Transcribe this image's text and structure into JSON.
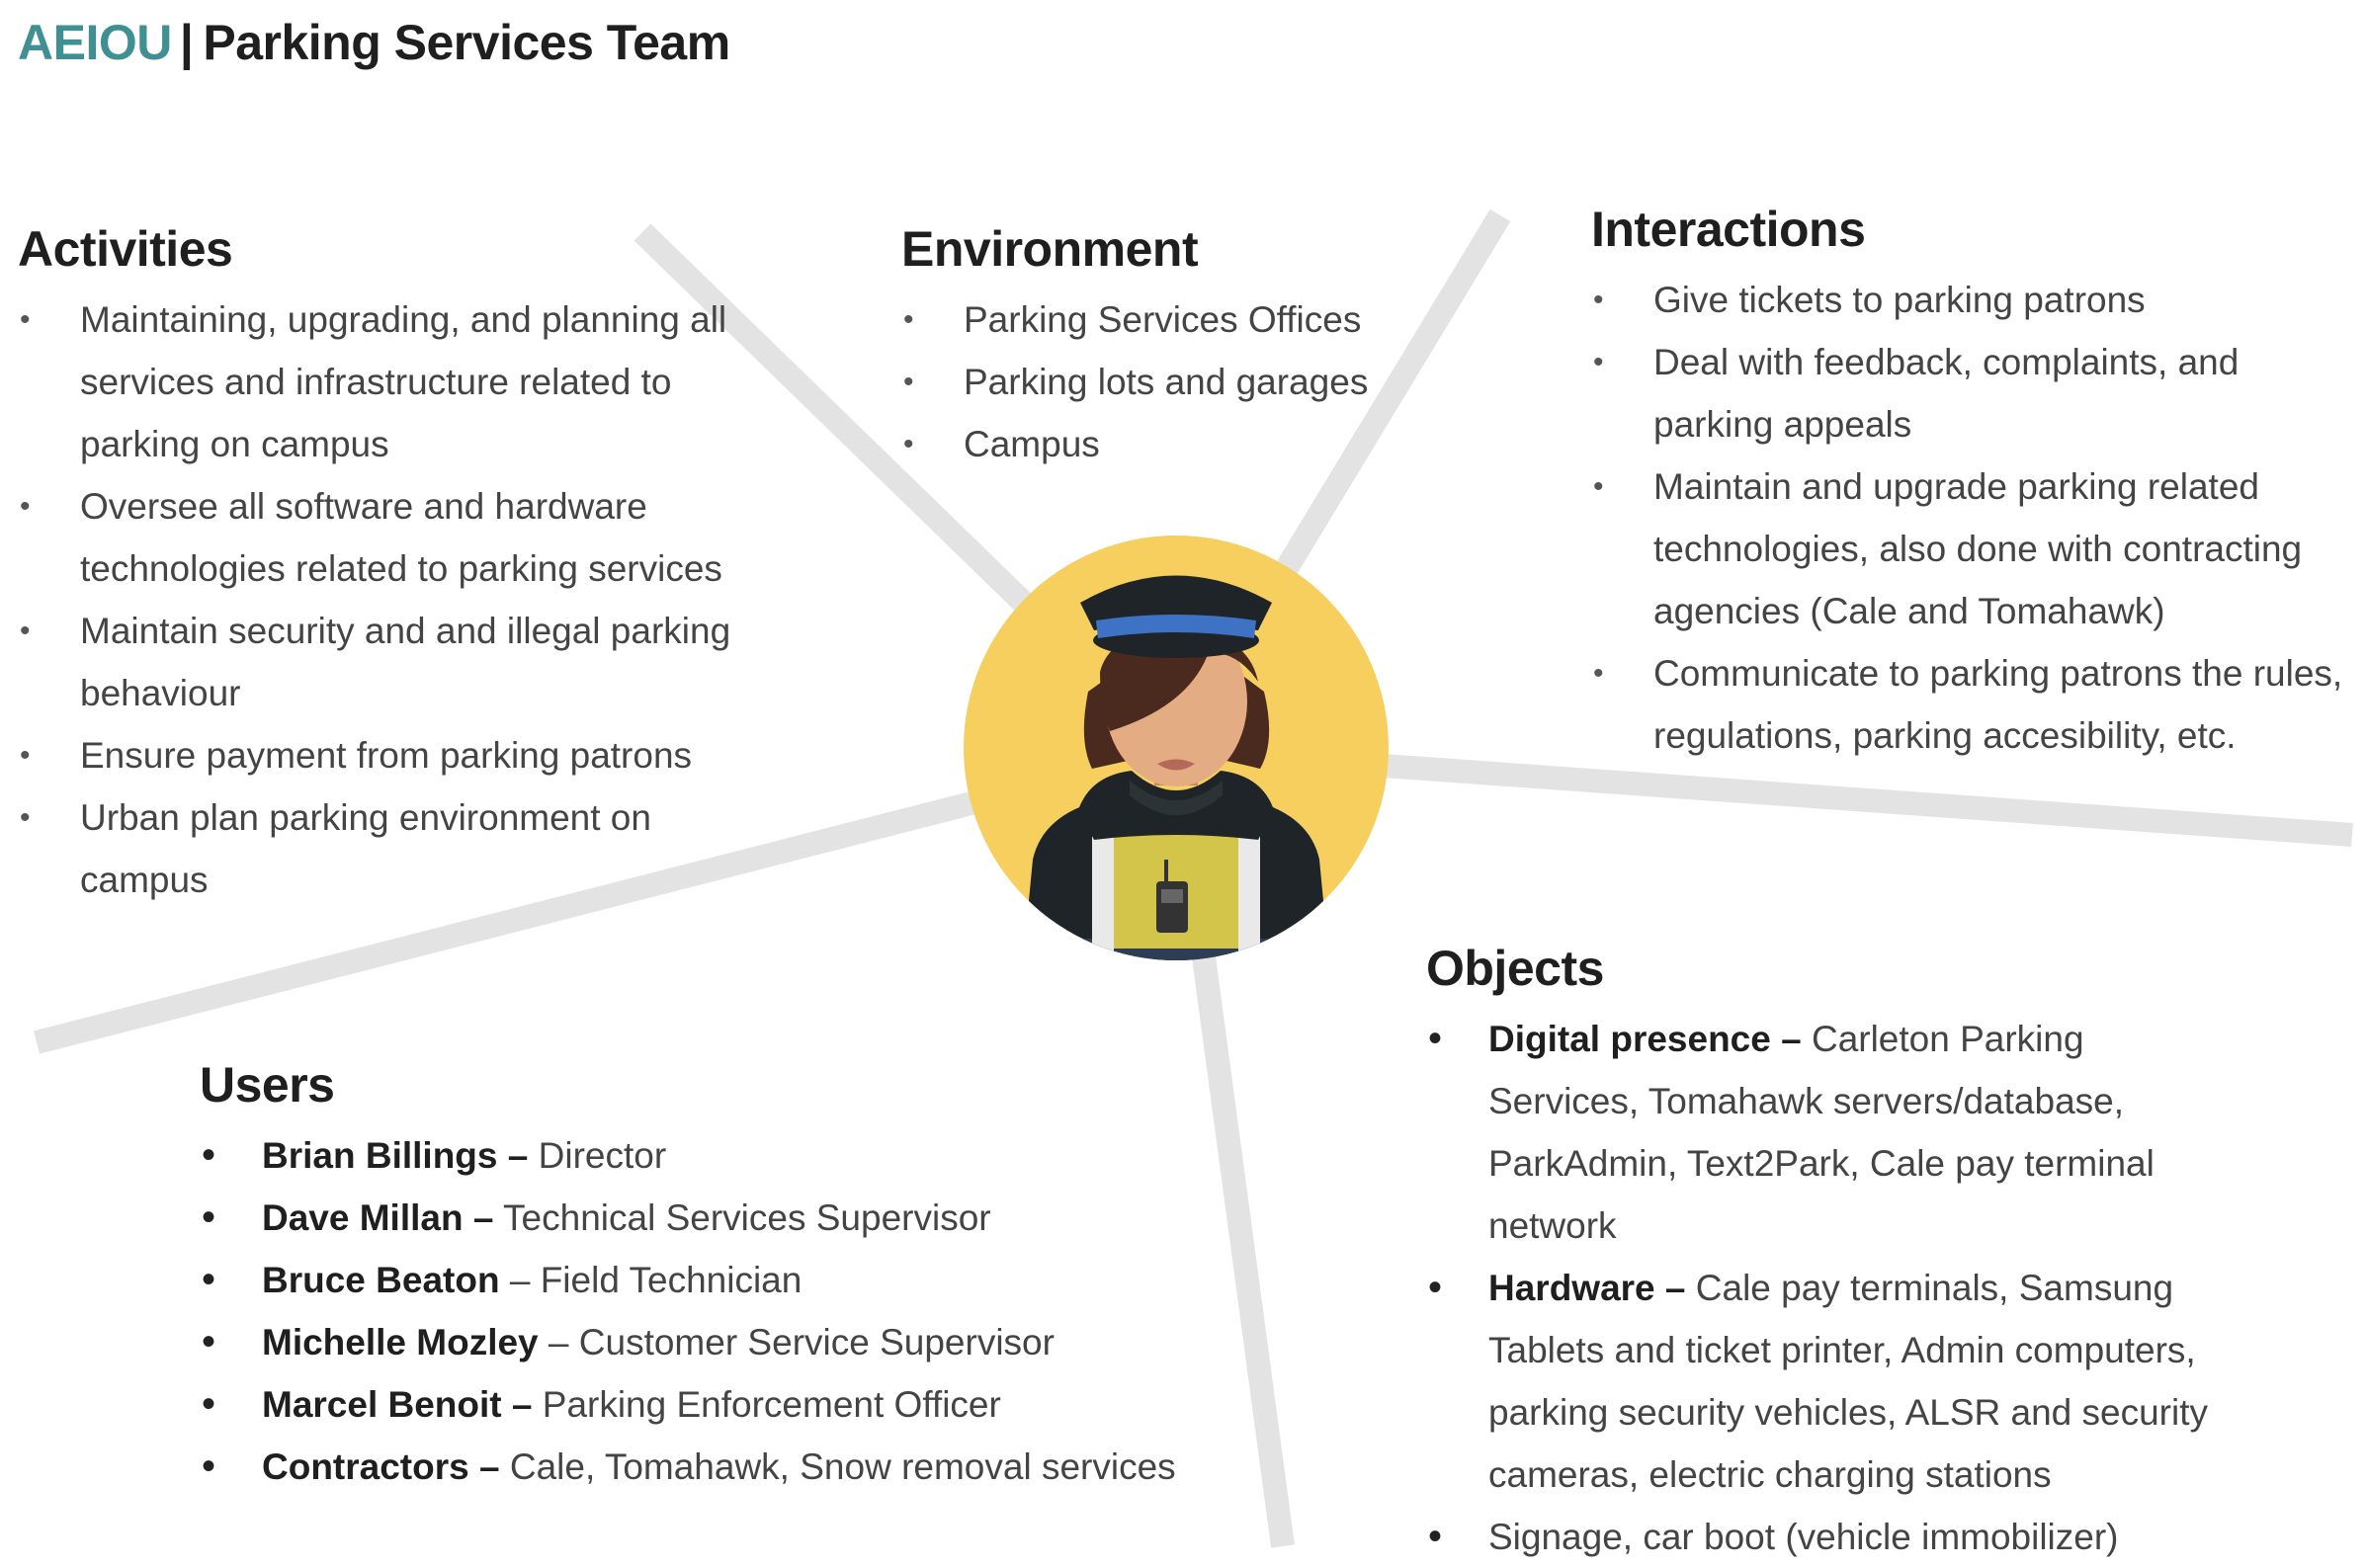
{
  "header": {
    "brand": "AEIOU",
    "separator": "|",
    "title": "Parking Services Team"
  },
  "colors": {
    "brand_teal": "#3f8f93",
    "spoke_gray": "#e3e3e3",
    "avatar_bg": "#f6cf5f",
    "hat_band": "#3d72c4",
    "vest": "#d3c54a"
  },
  "center_icon": "parking-officer-avatar-icon",
  "activities": {
    "heading": "Activities",
    "items": [
      "Maintaining, upgrading, and planning all services and infrastructure related to parking on campus",
      "Oversee all software and hardware technologies related to parking services",
      "Maintain security and and illegal parking behaviour",
      "Ensure payment from parking patrons",
      "Urban plan parking environment on campus"
    ]
  },
  "environment": {
    "heading": "Environment",
    "items": [
      "Parking Services Offices",
      "Parking lots and garages",
      "Campus"
    ]
  },
  "interactions": {
    "heading": "Interactions",
    "items": [
      "Give tickets to parking patrons",
      "Deal with feedback, complaints, and parking appeals",
      "Maintain and upgrade parking related technologies, also done with contracting agencies (Cale and Tomahawk)",
      "Communicate to parking patrons the rules, regulations, parking accesibility, etc."
    ]
  },
  "objects": {
    "heading": "Objects",
    "items": [
      {
        "name": "Digital presence –",
        "desc": " Carleton Parking Services, Tomahawk servers/database, ParkAdmin, Text2Park, Cale pay terminal network"
      },
      {
        "name": "Hardware –",
        "desc": " Cale pay terminals, Samsung Tablets and ticket printer, Admin computers, parking security vehicles, ALSR and security cameras, electric charging stations"
      },
      {
        "name": "",
        "desc": "Signage, car boot (vehicle immobilizer)"
      }
    ]
  },
  "users": {
    "heading": "Users",
    "items": [
      {
        "name": "Brian Billings –",
        "desc": " Director"
      },
      {
        "name": "Dave Millan –",
        "desc": " Technical Services Supervisor"
      },
      {
        "name": "Bruce Beaton",
        "desc": " – Field Technician"
      },
      {
        "name": "Michelle Mozley",
        "desc": " – Customer Service Supervisor"
      },
      {
        "name": "Marcel Benoit –",
        "desc": " Parking Enforcement Officer"
      },
      {
        "name": "Contractors –",
        "desc": " Cale, Tomahawk, Snow removal services"
      }
    ]
  }
}
